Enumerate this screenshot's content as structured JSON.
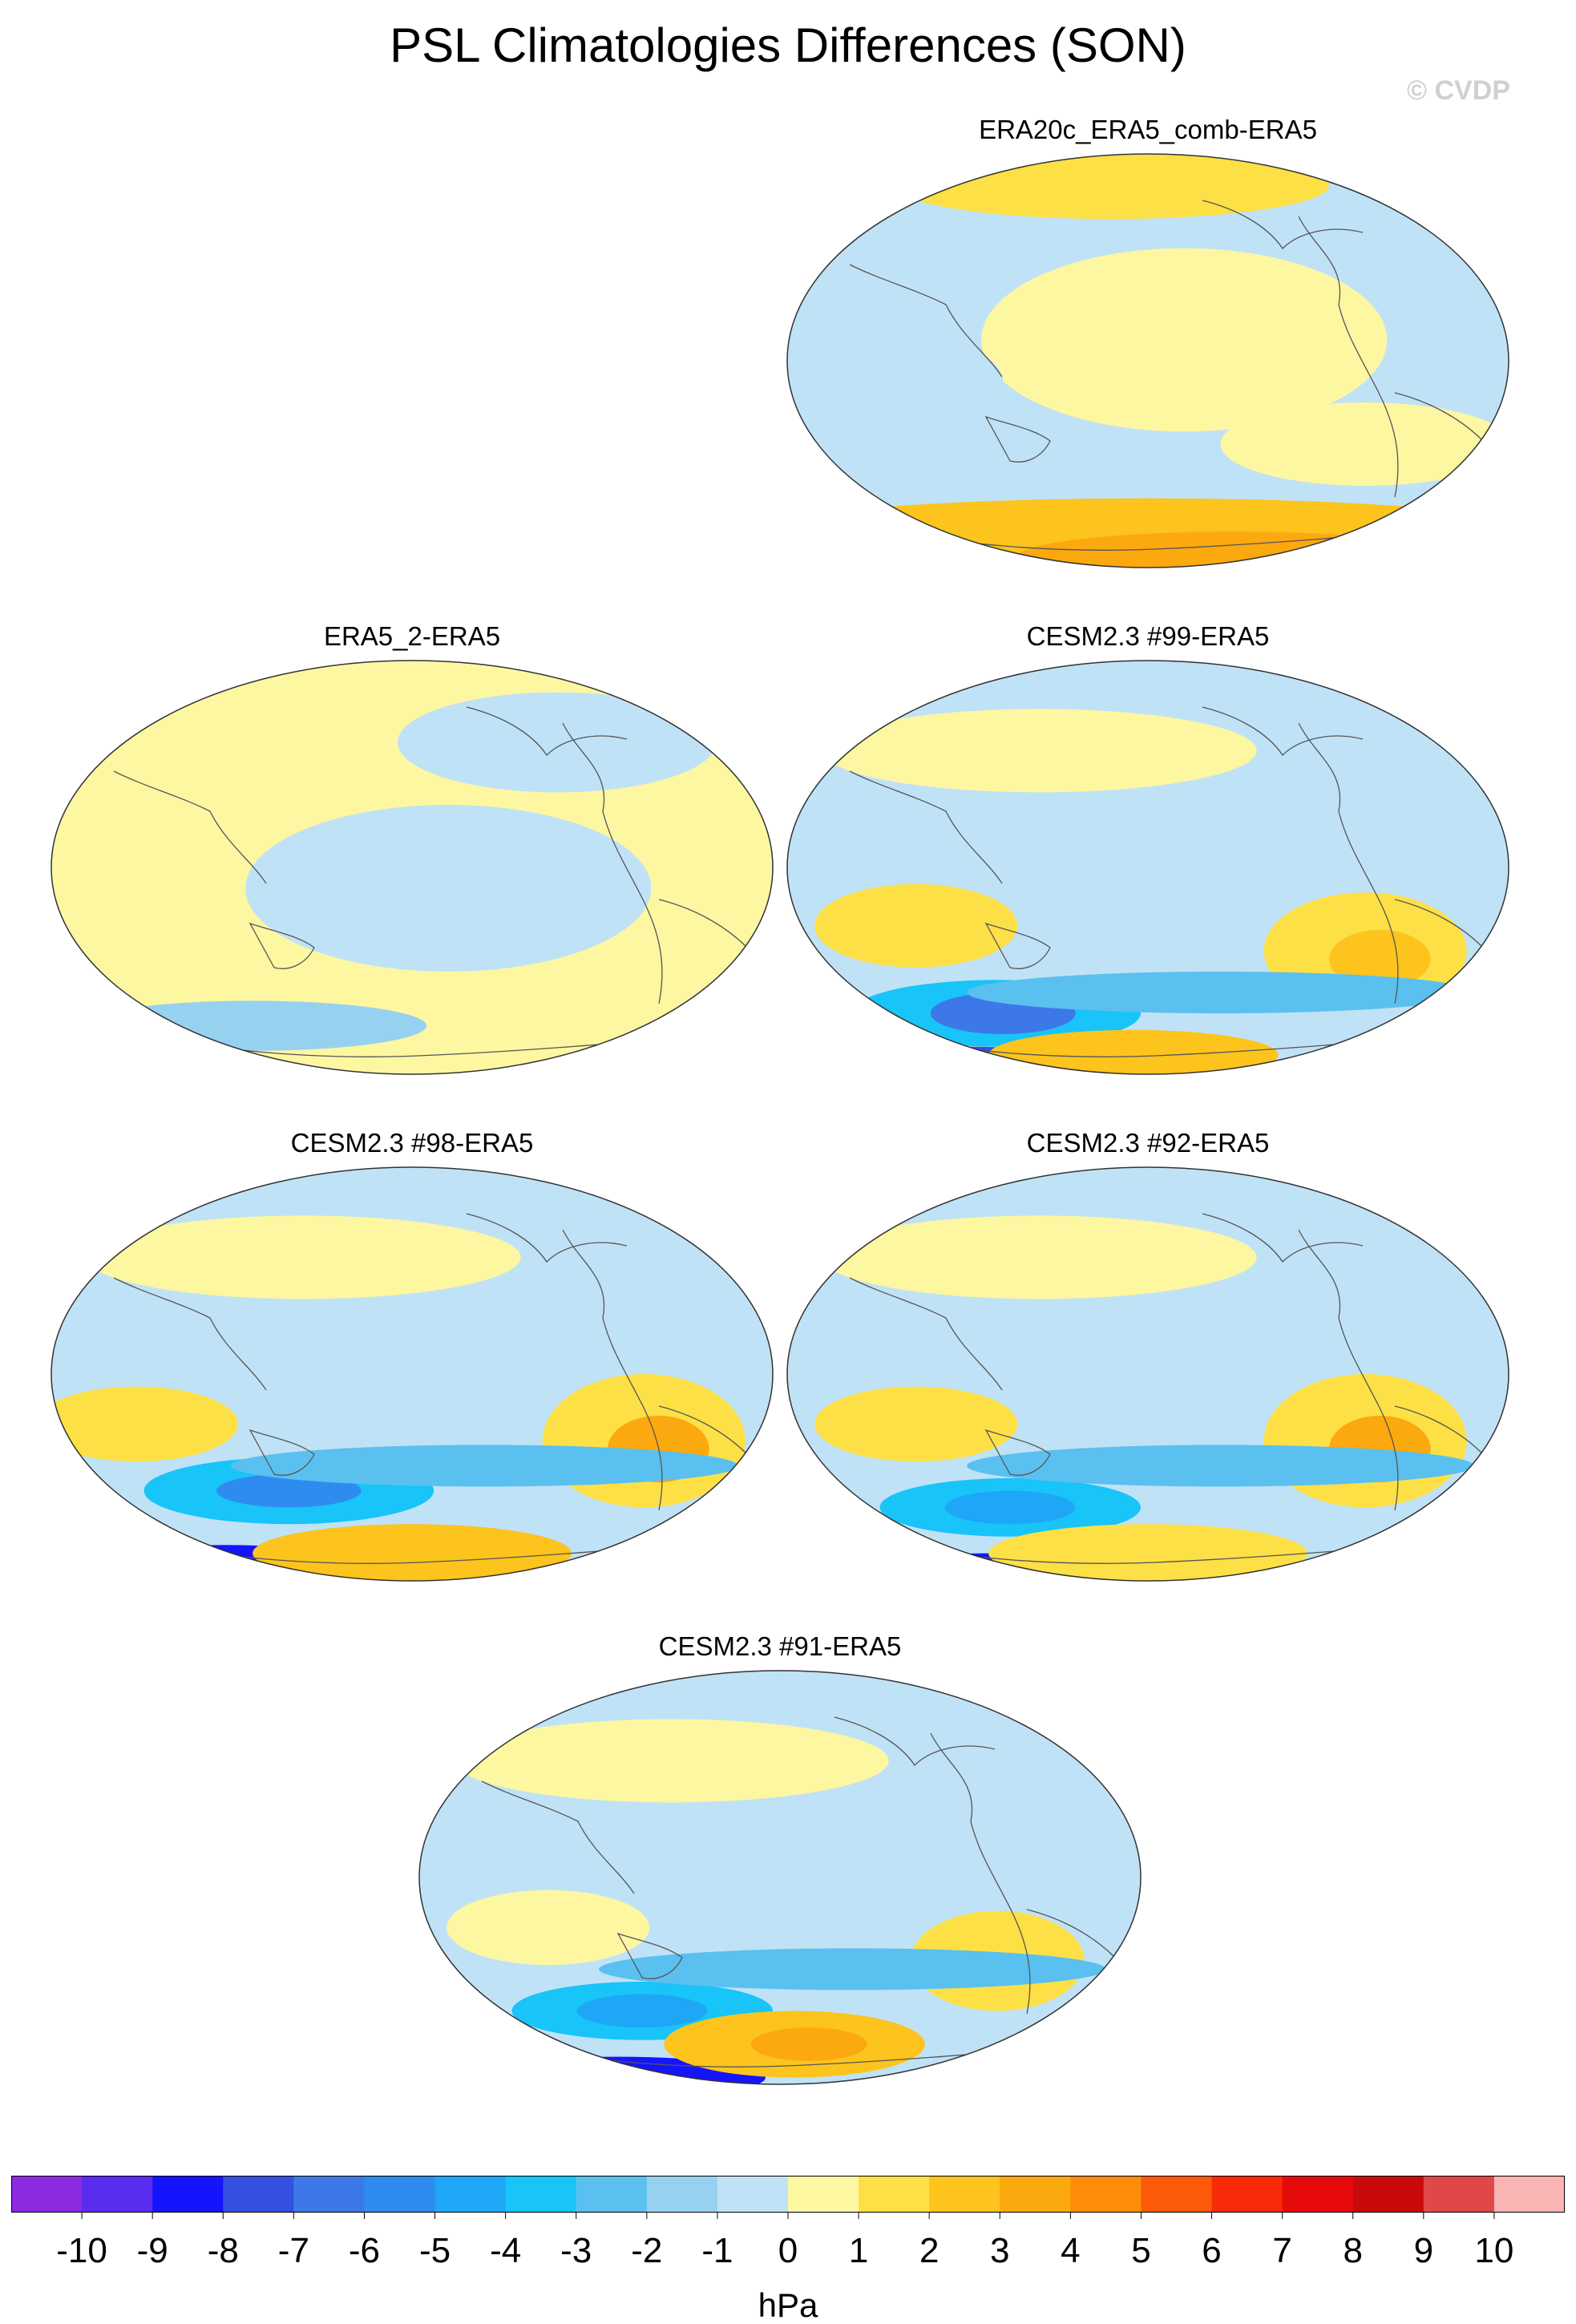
{
  "title": "PSL Climatologies Differences (SON)",
  "watermark": "© CVDP",
  "units": "hPa",
  "colorbar": {
    "levels": [
      -10,
      -9,
      -8,
      -7,
      -6,
      -5,
      -4,
      -3,
      -2,
      -1,
      0,
      1,
      2,
      3,
      4,
      5,
      6,
      7,
      8,
      9,
      10
    ],
    "tick_labels": [
      "-10",
      "-9",
      "-8",
      "-7",
      "-6",
      "-5",
      "-4",
      "-3",
      "-2",
      "-1",
      "0",
      "1",
      "2",
      "3",
      "4",
      "5",
      "6",
      "7",
      "8",
      "9",
      "10"
    ],
    "colors": [
      "#8a2be2",
      "#5a2cf0",
      "#1414ff",
      "#3450e0",
      "#3d78e8",
      "#2e8cf0",
      "#1ea6f7",
      "#18c4f8",
      "#5ac0f0",
      "#96d2f0",
      "#c0e2f6",
      "#fdf7a2",
      "#fde046",
      "#fcc41c",
      "#fca80f",
      "#fc8c0a",
      "#fc5a08",
      "#f82a08",
      "#e60a0a",
      "#c80a0a",
      "#e04848",
      "#fbb4b4"
    ]
  },
  "panels": [
    {
      "id": "era20c",
      "title": "ERA20c_ERA5_comb-ERA5"
    },
    {
      "id": "era5_2",
      "title": "ERA5_2-ERA5"
    },
    {
      "id": "cesm99",
      "title": "CESM2.3 #99-ERA5"
    },
    {
      "id": "cesm98",
      "title": "CESM2.3 #98-ERA5"
    },
    {
      "id": "cesm92",
      "title": "CESM2.3 #92-ERA5"
    },
    {
      "id": "cesm91",
      "title": "CESM2.3 #91-ERA5"
    }
  ],
  "chart_data": {
    "type": "heatmap",
    "title": "PSL Climatologies Differences (SON)",
    "units": "hPa",
    "projection": "Robinson, Pacific-centered",
    "field": "sea level pressure difference vs ERA5",
    "color_range": [
      -10,
      10
    ],
    "panels": [
      {
        "name": "ERA20c_ERA5_comb-ERA5",
        "notes": "Mostly weak (-1 to +1 hPa); southern ocean high latitudes +2 to +4 hPa"
      },
      {
        "name": "ERA5_2-ERA5",
        "notes": "Near zero everywhere (-1 to +1 hPa)"
      },
      {
        "name": "CESM2.3 #99-ERA5",
        "notes": "Southern ocean low near -7 hPa; S. Atlantic/S. Indian highs +2 to +4 hPa; Antarctica -8 to +4 hPa"
      },
      {
        "name": "CESM2.3 #98-ERA5",
        "notes": "Southern ocean low near -6 hPa; S. Atlantic high +3 to +4 hPa; Antarctica -9 to +4 hPa"
      },
      {
        "name": "CESM2.3 #92-ERA5",
        "notes": "Southern ocean low near -5 hPa; S. Atlantic high +3 to +4 hPa; Antarctica -9 to +4 hPa"
      },
      {
        "name": "CESM2.3 #91-ERA5",
        "notes": "Southern ocean low near -5 hPa; S. Atlantic high +2 to +3 hPa; Antarctica -8 to +4 hPa"
      }
    ]
  }
}
